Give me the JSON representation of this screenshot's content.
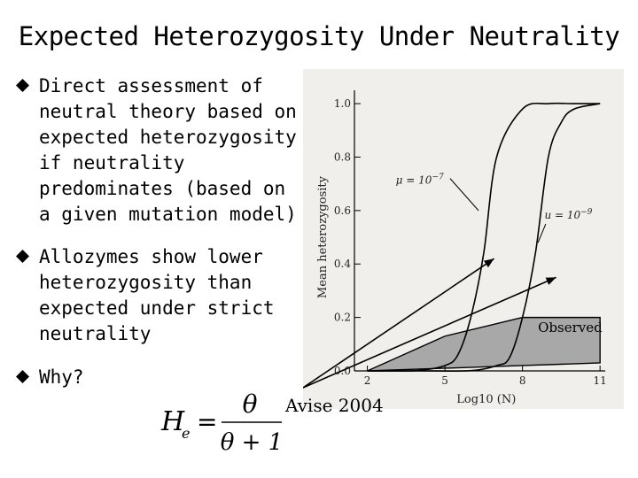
{
  "slide": {
    "title": "Expected Heterozygosity Under Neutrality",
    "bullets": [
      {
        "text": "Direct assessment of\nneutral theory based on\nexpected heterozygosity\nif neutrality\npredominates (based on\na given mutation model)"
      },
      {
        "text": "Allozymes show lower\nheterozygosity than\nexpected under strict\nneutrality"
      },
      {
        "text": "Why?"
      }
    ],
    "citation": "Avise 2004",
    "formula": {
      "lhs": "H",
      "subscript": "e",
      "equals": "=",
      "numerator": "θ",
      "denominator": "θ + 1"
    },
    "bullet_color": "#000000"
  },
  "chart_data": {
    "type": "line",
    "xlabel": "Log10 (N)",
    "ylabel": "Mean heterozygosity",
    "xlim": [
      1.5,
      11.2
    ],
    "ylim": [
      0,
      1.05
    ],
    "x_ticks": [
      2,
      5,
      8,
      11
    ],
    "y_ticks": [
      0.0,
      0.2,
      0.4,
      0.6,
      0.8,
      1.0
    ],
    "y_tick_labels": [
      "0.0",
      "0.2",
      "0.4",
      "0.6",
      "0.8",
      "1.0"
    ],
    "series": [
      {
        "name": "μ = 10^-7",
        "label_main": "μ = 10",
        "label_exp": "−7",
        "x": [
          2,
          3,
          4,
          5,
          5.5,
          6,
          6.5,
          7,
          8,
          9,
          10,
          11
        ],
        "y": [
          0.0,
          0.0,
          0.002,
          0.02,
          0.06,
          0.2,
          0.44,
          0.8,
          0.98,
          1.0,
          1.0,
          1.0
        ]
      },
      {
        "name": "μ = 10^-9",
        "label_main": "u = 10",
        "label_exp": "−9",
        "x": [
          2,
          4,
          6,
          7,
          7.5,
          8,
          8.5,
          9,
          9.5,
          10,
          11
        ],
        "y": [
          0.0,
          0.0,
          0.001,
          0.02,
          0.05,
          0.2,
          0.44,
          0.8,
          0.93,
          0.98,
          1.0
        ]
      }
    ],
    "observed": {
      "label": "Observed",
      "upper": [
        [
          2,
          0.0
        ],
        [
          5,
          0.13
        ],
        [
          8,
          0.2
        ],
        [
          11,
          0.2
        ]
      ],
      "lower": [
        [
          11,
          0.03
        ],
        [
          8,
          0.02
        ],
        [
          5,
          0.01
        ],
        [
          2,
          0.0
        ]
      ],
      "fill": "#a8a8a8"
    },
    "annotations": [
      {
        "series": 0,
        "from": [
          5.2,
          0.72
        ],
        "to": [
          6.3,
          0.6
        ]
      },
      {
        "series": 1,
        "from": [
          8.9,
          0.55
        ],
        "to": [
          8.6,
          0.48
        ]
      }
    ],
    "slide_arrows": [
      {
        "to": [
          6.9,
          0.42
        ]
      },
      {
        "to": [
          9.3,
          0.35
        ]
      }
    ],
    "background": "#f1efec"
  }
}
